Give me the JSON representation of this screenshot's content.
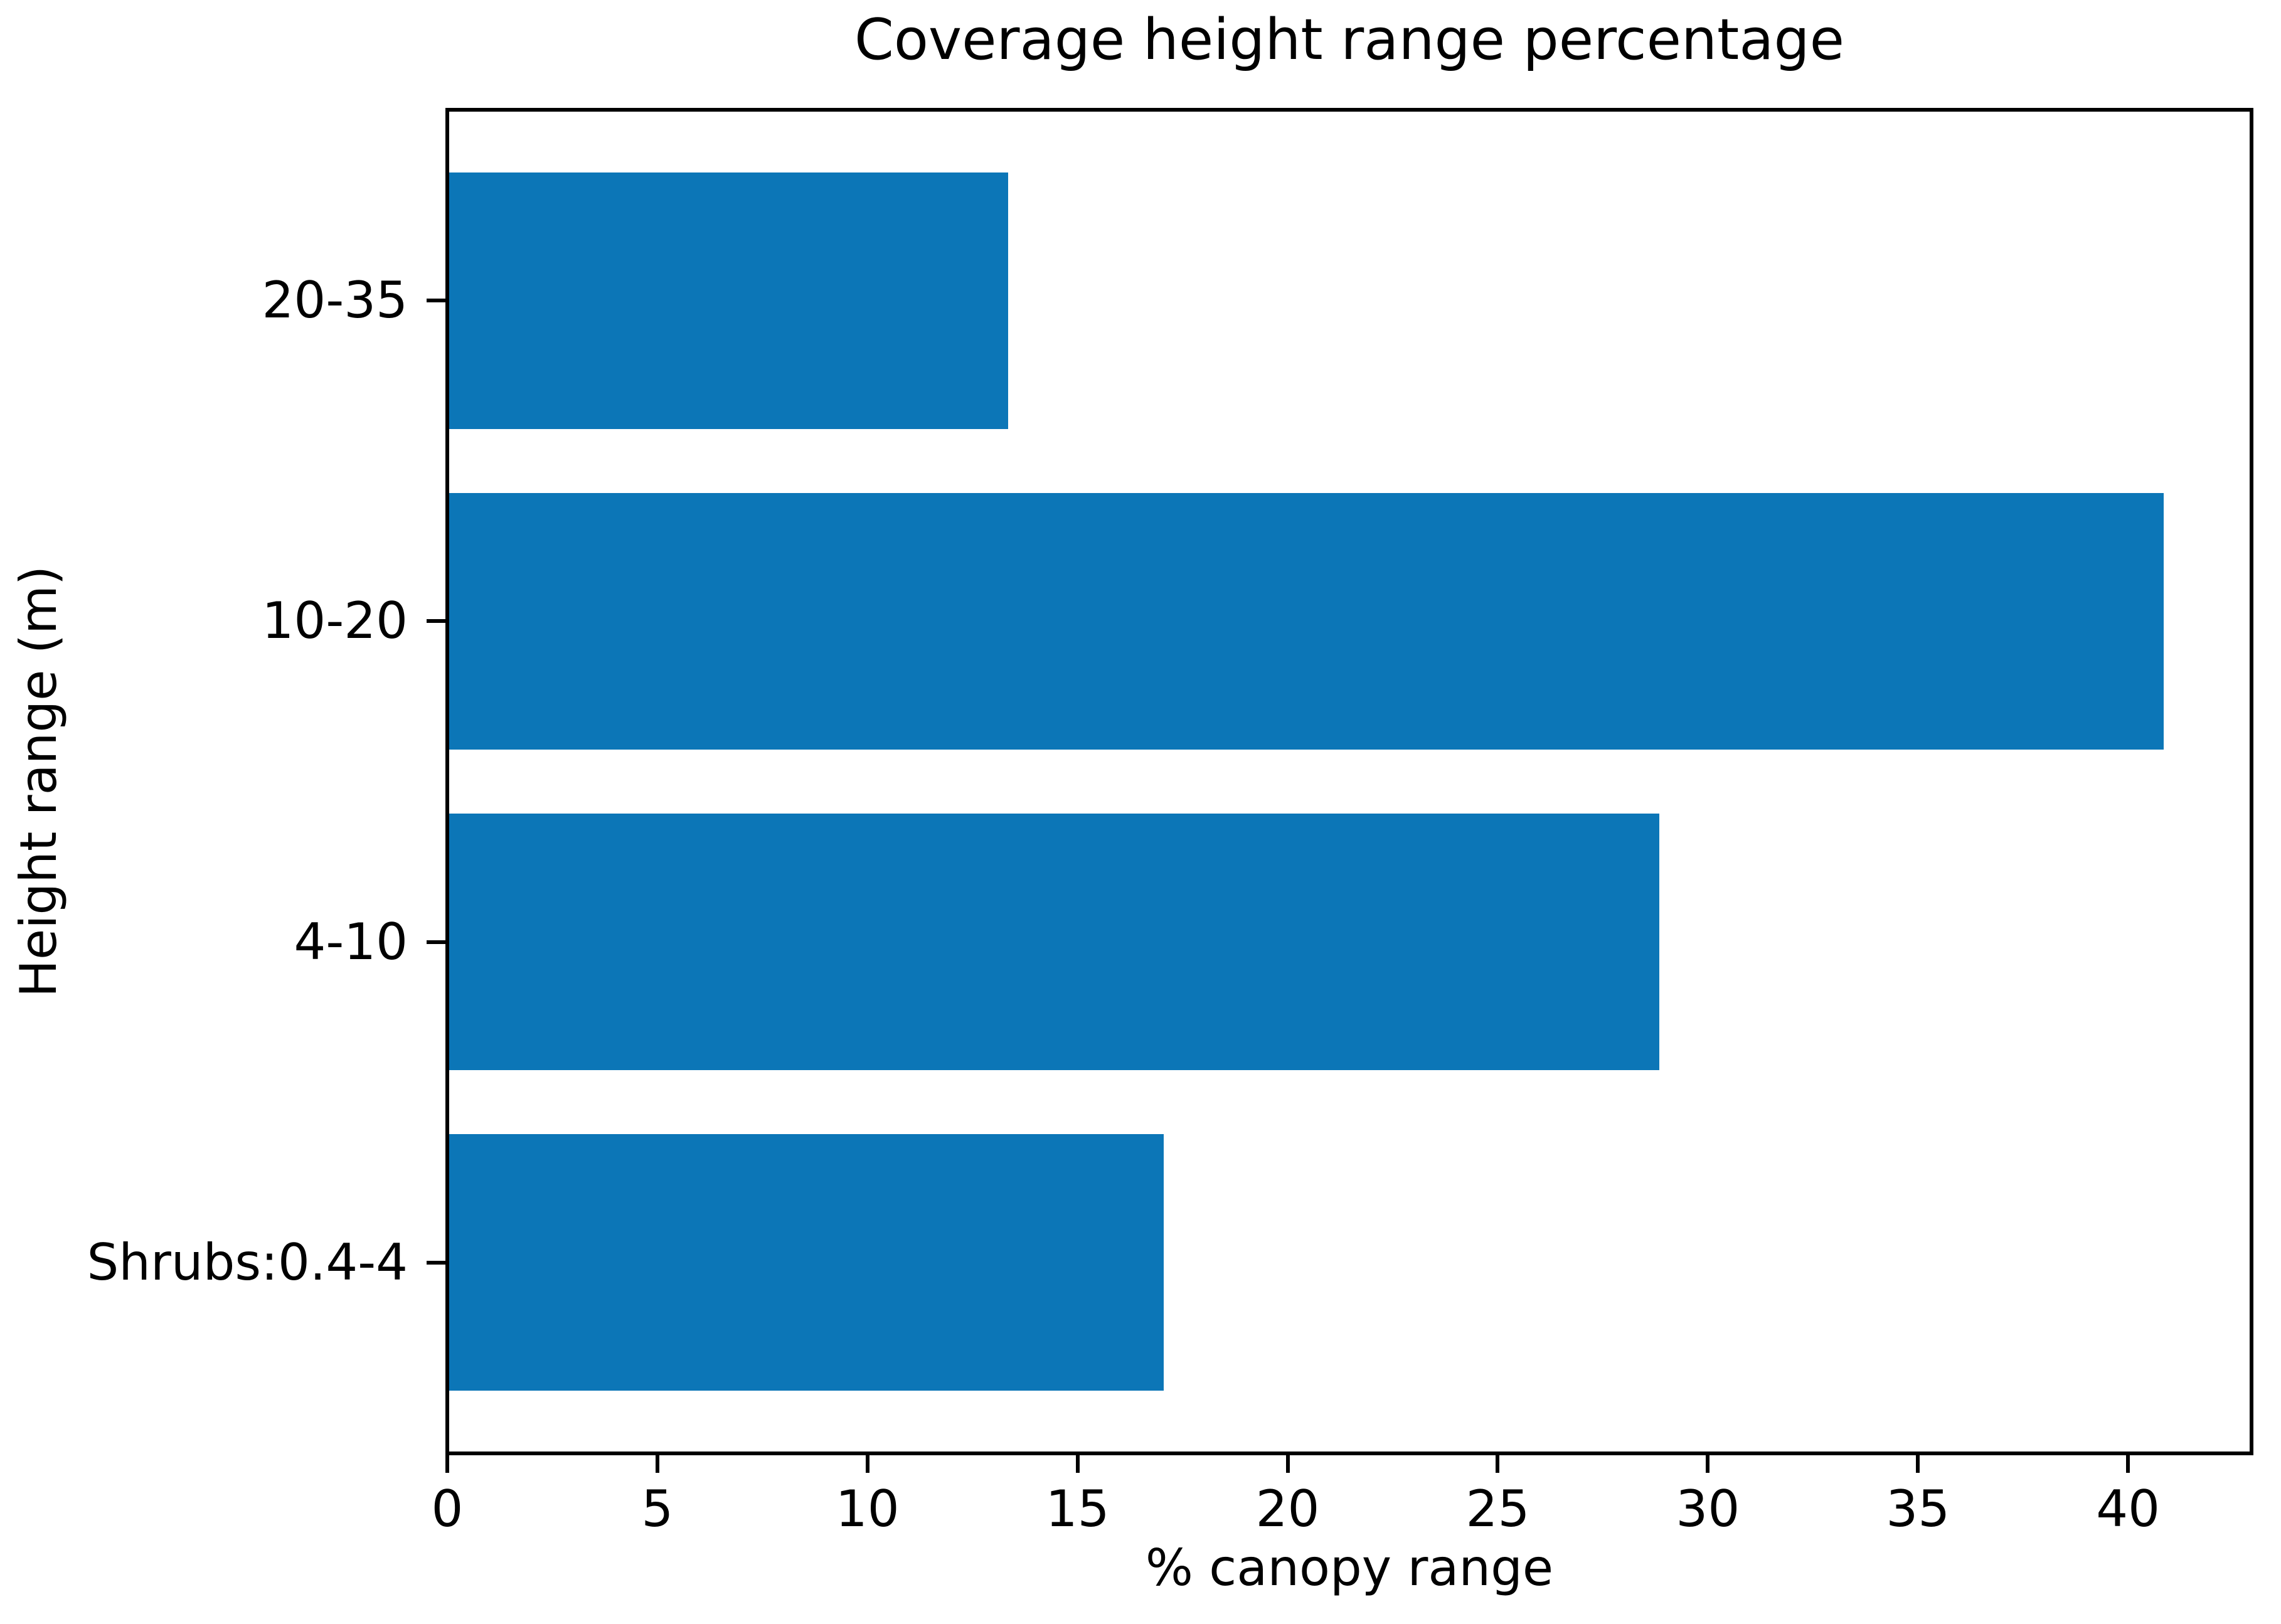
{
  "chart_data": {
    "type": "bar",
    "orientation": "horizontal",
    "title": "Coverage height range percentage",
    "xlabel": "% canopy range",
    "ylabel": "Height range (m)",
    "categories": [
      "20-35",
      "10-20",
      "4-10",
      "Shrubs:0.4-4"
    ],
    "values": [
      13.3,
      40.8,
      28.8,
      17.0
    ],
    "x_ticks": [
      0,
      5,
      10,
      15,
      20,
      25,
      30,
      35,
      40
    ],
    "xlim": [
      0,
      42.85
    ],
    "bar_color": "#0c76b7",
    "axis_color": "#000000",
    "background_color": "#ffffff",
    "grid": false,
    "legend": false
  }
}
